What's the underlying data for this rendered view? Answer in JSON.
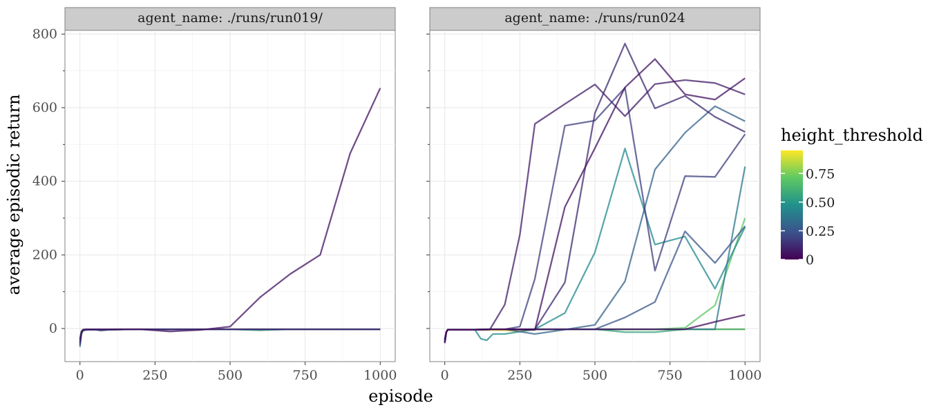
{
  "chart_data": {
    "type": "line",
    "facet_variable": "agent_name",
    "xlabel": "episode",
    "ylabel": "average episodic return",
    "x_ticks": [
      0,
      250,
      500,
      750,
      1000
    ],
    "y_ticks": [
      0,
      200,
      400,
      600,
      800
    ],
    "xlim": [
      -50,
      1050
    ],
    "ylim": [
      -90,
      810
    ],
    "grid": true,
    "legend": {
      "title": "height_threshold",
      "type": "colorbar",
      "placement": "right",
      "range": [
        0,
        0.95
      ],
      "ticks": [
        0,
        0.25,
        0.5,
        0.75
      ],
      "tick_labels": [
        "0",
        "0.25",
        "0.50",
        "0.75"
      ],
      "colors": [
        "#440154",
        "#3b528b",
        "#21918c",
        "#5ec962",
        "#fde725"
      ]
    },
    "panels": [
      {
        "title": "agent_name: ./runs/run019/",
        "series": [
          {
            "height_threshold": 0.05,
            "x": [
              0,
              5,
              10,
              20,
              50,
              100,
              200,
              300,
              400,
              500,
              600,
              700,
              800,
              900,
              1000
            ],
            "y": [
              -30,
              -12,
              -3,
              -2,
              -2,
              -2,
              -2,
              -8,
              -4,
              5,
              85,
              148,
              200,
              476,
              653
            ]
          },
          {
            "height_threshold": 0.1,
            "x": [
              0,
              5,
              10,
              20,
              50,
              100,
              200,
              300,
              400,
              500,
              600,
              700,
              800,
              900,
              1000
            ],
            "y": [
              -40,
              -8,
              -4,
              -3,
              -3,
              -3,
              -2,
              -2,
              -2,
              -2,
              -2,
              -2,
              -2,
              -2,
              -2
            ]
          },
          {
            "height_threshold": 0.2,
            "x": [
              0,
              5,
              10,
              20,
              50,
              100,
              200,
              300,
              400,
              500,
              600,
              700,
              800,
              900,
              1000
            ],
            "y": [
              -45,
              -10,
              -5,
              -3,
              -3,
              -3,
              -2,
              -2,
              -2,
              -2,
              -2,
              -2,
              -2,
              -2,
              -2
            ]
          },
          {
            "height_threshold": 0.3,
            "x": [
              0,
              5,
              10,
              20,
              50,
              70,
              100,
              200,
              300,
              400,
              500,
              600,
              700,
              800,
              900,
              1000
            ],
            "y": [
              -50,
              -15,
              -6,
              -4,
              -3,
              -6,
              -3,
              -2,
              -3,
              -2,
              -2,
              -2,
              -2,
              -2,
              -2,
              -2
            ]
          },
          {
            "height_threshold": 0.4,
            "x": [
              0,
              5,
              10,
              20,
              50,
              100,
              200,
              300,
              400,
              500,
              600,
              700,
              800,
              900,
              1000
            ],
            "y": [
              -35,
              -10,
              -4,
              -3,
              -3,
              -3,
              -2,
              -2,
              -2,
              -2,
              -2,
              -2,
              -2,
              -2,
              -2
            ]
          },
          {
            "height_threshold": 0.55,
            "x": [
              0,
              5,
              10,
              20,
              50,
              100,
              200,
              300,
              400,
              500,
              600,
              700,
              800,
              900,
              1000
            ],
            "y": [
              -30,
              -9,
              -4,
              -3,
              -3,
              -3,
              -2,
              -2,
              -2,
              -2,
              -5,
              -2,
              -2,
              -2,
              -2
            ]
          },
          {
            "height_threshold": 0.75,
            "x": [
              0,
              5,
              10,
              20,
              50,
              100,
              200,
              300,
              400,
              500,
              600,
              700,
              800,
              900,
              1000
            ],
            "y": [
              -25,
              -8,
              -4,
              -3,
              -3,
              -3,
              -2,
              -2,
              -2,
              -2,
              -2,
              -2,
              -2,
              -2,
              -2
            ]
          },
          {
            "height_threshold": 0.9,
            "x": [
              0,
              5,
              10,
              20,
              50,
              100,
              200,
              300,
              400,
              500,
              600,
              700,
              800,
              900,
              1000
            ],
            "y": [
              -20,
              -7,
              -3,
              -3,
              -3,
              -3,
              -2,
              -2,
              -2,
              -2,
              -2,
              -2,
              -2,
              -2,
              -2
            ]
          }
        ]
      },
      {
        "title": "agent_name: ./runs/run024",
        "series": [
          {
            "height_threshold": 0.02,
            "x": [
              0,
              5,
              10,
              20,
              50,
              100,
              200,
              300,
              400,
              500,
              600,
              700,
              800,
              900,
              1000
            ],
            "y": [
              -40,
              -10,
              -3,
              -3,
              -3,
              -3,
              -2,
              -2,
              -2,
              -2,
              -2,
              -2,
              -2,
              18,
              37
            ]
          },
          {
            "height_threshold": 0.05,
            "x": [
              0,
              5,
              10,
              20,
              50,
              100,
              200,
              300,
              400,
              500,
              600,
              700,
              800,
              900,
              1000
            ],
            "y": [
              -38,
              -10,
              -3,
              -3,
              -3,
              -3,
              -2,
              -4,
              330,
              490,
              655,
              732,
              636,
              622,
              680
            ]
          },
          {
            "height_threshold": 0.08,
            "x": [
              0,
              5,
              10,
              20,
              50,
              100,
              150,
              200,
              250,
              300,
              400,
              500,
              600,
              700,
              800,
              900,
              1000
            ],
            "y": [
              -35,
              -10,
              -3,
              -3,
              -3,
              -3,
              -3,
              65,
              255,
              556,
              610,
              663,
              577,
              664,
              675,
              667,
              636
            ]
          },
          {
            "height_threshold": 0.12,
            "x": [
              0,
              5,
              10,
              20,
              50,
              100,
              200,
              300,
              400,
              500,
              600,
              700,
              800,
              900,
              1000
            ],
            "y": [
              -35,
              -10,
              -3,
              -3,
              -3,
              -3,
              -2,
              -2,
              125,
              585,
              774,
              598,
              632,
              575,
              534
            ]
          },
          {
            "height_threshold": 0.18,
            "x": [
              0,
              5,
              10,
              20,
              50,
              100,
              200,
              250,
              300,
              400,
              500,
              600,
              700,
              800,
              900,
              1000
            ],
            "y": [
              -30,
              -10,
              -3,
              -3,
              -3,
              -3,
              -2,
              5,
              135,
              551,
              565,
              654,
              157,
              414,
              412,
              528
            ]
          },
          {
            "height_threshold": 0.25,
            "x": [
              0,
              5,
              10,
              20,
              50,
              100,
              200,
              300,
              400,
              500,
              600,
              700,
              800,
              900,
              1000
            ],
            "y": [
              -30,
              -10,
              -3,
              -3,
              -3,
              -3,
              -2,
              -2,
              -2,
              -2,
              30,
              72,
              264,
              178,
              278
            ]
          },
          {
            "height_threshold": 0.3,
            "x": [
              0,
              5,
              10,
              20,
              50,
              100,
              200,
              300,
              400,
              500,
              600,
              700,
              800,
              900,
              1000
            ],
            "y": [
              -30,
              -10,
              -3,
              -3,
              -3,
              -3,
              -2,
              -15,
              -3,
              10,
              128,
              432,
              532,
              604,
              563
            ]
          },
          {
            "height_threshold": 0.38,
            "x": [
              0,
              5,
              10,
              20,
              50,
              100,
              200,
              300,
              400,
              500,
              600,
              700,
              800,
              900,
              1000
            ],
            "y": [
              -30,
              -10,
              -3,
              -3,
              -3,
              -3,
              -2,
              -2,
              -2,
              -2,
              -2,
              -2,
              -2,
              -2,
              440
            ]
          },
          {
            "height_threshold": 0.45,
            "x": [
              0,
              5,
              10,
              20,
              50,
              100,
              120,
              140,
              160,
              200,
              300,
              400,
              500,
              600,
              700,
              800,
              900,
              1000
            ],
            "y": [
              -30,
              -10,
              -3,
              -3,
              -3,
              -3,
              -28,
              -32,
              -15,
              -15,
              -2,
              42,
              207,
              489,
              228,
              250,
              108,
              276
            ]
          },
          {
            "height_threshold": 0.55,
            "x": [
              0,
              5,
              10,
              20,
              50,
              100,
              200,
              300,
              400,
              500,
              600,
              700,
              800,
              900,
              1000
            ],
            "y": [
              -30,
              -10,
              -3,
              -3,
              -3,
              -3,
              -2,
              -2,
              -2,
              -2,
              -10,
              -10,
              -2,
              -2,
              -2
            ]
          },
          {
            "height_threshold": 0.7,
            "x": [
              0,
              5,
              10,
              20,
              50,
              100,
              200,
              300,
              400,
              500,
              600,
              700,
              800,
              900,
              1000
            ],
            "y": [
              -30,
              -10,
              -3,
              -3,
              -3,
              -3,
              -2,
              -2,
              -2,
              -2,
              -2,
              -2,
              2,
              63,
              300
            ]
          },
          {
            "height_threshold": 0.85,
            "x": [
              0,
              5,
              10,
              20,
              50,
              100,
              200,
              300,
              400,
              500,
              600,
              700,
              800,
              900,
              1000
            ],
            "y": [
              -30,
              -10,
              -3,
              -3,
              -3,
              -3,
              -2,
              -2,
              -2,
              -2,
              -2,
              -2,
              -2,
              -2,
              -2
            ]
          },
          {
            "height_threshold": 0.95,
            "x": [
              0,
              5,
              10,
              20,
              50,
              100,
              200,
              250,
              300,
              400,
              500,
              600,
              700,
              800,
              900,
              1000
            ],
            "y": [
              -30,
              -10,
              -3,
              -3,
              -3,
              -3,
              -5,
              -8,
              -3,
              -2,
              -2,
              -2,
              -2,
              -2,
              -2,
              -2
            ]
          }
        ]
      }
    ]
  }
}
